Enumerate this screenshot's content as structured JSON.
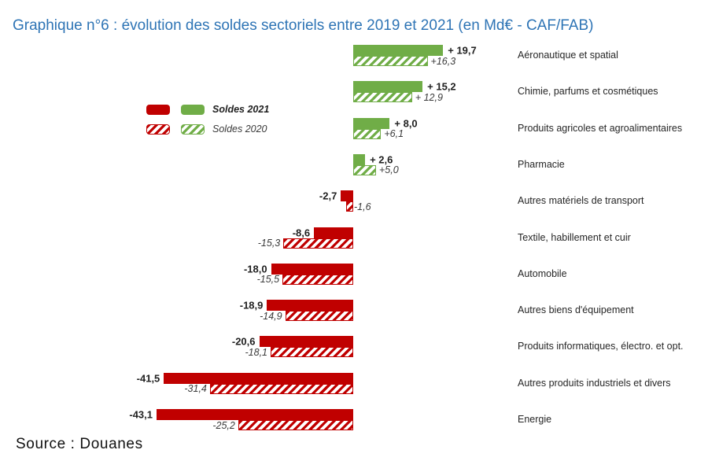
{
  "title": "Graphique n°6 : évolution des soldes sectoriels entre 2019 et 2021 (en Md€ - CAF/FAB)",
  "source": "Source : Douanes",
  "legend": {
    "soldes_2021": "Soldes 2021",
    "soldes_2020": "Soldes 2020"
  },
  "colors": {
    "negative_red": "#C00000",
    "positive_green": "#70AD47",
    "title_blue": "#2E74B5"
  },
  "chart_data": {
    "type": "bar",
    "orientation": "horizontal",
    "title": "Graphique n°6 : évolution des soldes sectoriels entre 2019 et 2021 (en Md€ - CAF/FAB)",
    "unit": "Md€ - CAF/FAB",
    "legend_position": "left",
    "grid": false,
    "xlim": [
      -45,
      25
    ],
    "series_names": [
      "Soldes 2021",
      "Soldes 2020"
    ],
    "categories": [
      "Aéronautique et spatial",
      "Chimie, parfums et cosmétiques",
      "Produits agricoles et agroalimentaires",
      "Pharmacie",
      "Autres matériels de transport",
      "Textile, habillement et cuir",
      "Automobile",
      "Autres biens d'équipement",
      "Produits informatiques, électro. et opt.",
      "Autres produits industriels et divers",
      "Energie"
    ],
    "rows": [
      {
        "category": "Aéronautique et spatial",
        "solde_2021": 19.7,
        "solde_2020": 16.3,
        "label_2021": "+ 19,7",
        "label_2020": "+16,3"
      },
      {
        "category": "Chimie, parfums et cosmétiques",
        "solde_2021": 15.2,
        "solde_2020": 12.9,
        "label_2021": "+ 15,2",
        "label_2020": "+ 12,9"
      },
      {
        "category": "Produits agricoles et agroalimentaires",
        "solde_2021": 8.0,
        "solde_2020": 6.1,
        "label_2021": "+ 8,0",
        "label_2020": "+6,1"
      },
      {
        "category": "Pharmacie",
        "solde_2021": 2.6,
        "solde_2020": 5.0,
        "label_2021": "+ 2,6",
        "label_2020": "+5,0"
      },
      {
        "category": "Autres matériels de transport",
        "solde_2021": -2.7,
        "solde_2020": -1.6,
        "label_2021": "-2,7",
        "label_2020": "-1,6"
      },
      {
        "category": "Textile, habillement et cuir",
        "solde_2021": -8.6,
        "solde_2020": -15.3,
        "label_2021": "-8,6",
        "label_2020": "-15,3"
      },
      {
        "category": "Automobile",
        "solde_2021": -18.0,
        "solde_2020": -15.5,
        "label_2021": "-18,0",
        "label_2020": "-15,5"
      },
      {
        "category": "Autres biens d'équipement",
        "solde_2021": -18.9,
        "solde_2020": -14.9,
        "label_2021": "-18,9",
        "label_2020": "-14,9"
      },
      {
        "category": "Produits informatiques, électro. et opt.",
        "solde_2021": -20.6,
        "solde_2020": -18.1,
        "label_2021": "-20,6",
        "label_2020": "-18,1"
      },
      {
        "category": "Autres produits industriels et divers",
        "solde_2021": -41.5,
        "solde_2020": -31.4,
        "label_2021": "-41,5",
        "label_2020": "-31,4"
      },
      {
        "category": "Energie",
        "solde_2021": -43.1,
        "solde_2020": -25.2,
        "label_2021": "-43,1",
        "label_2020": "-25,2"
      }
    ]
  }
}
